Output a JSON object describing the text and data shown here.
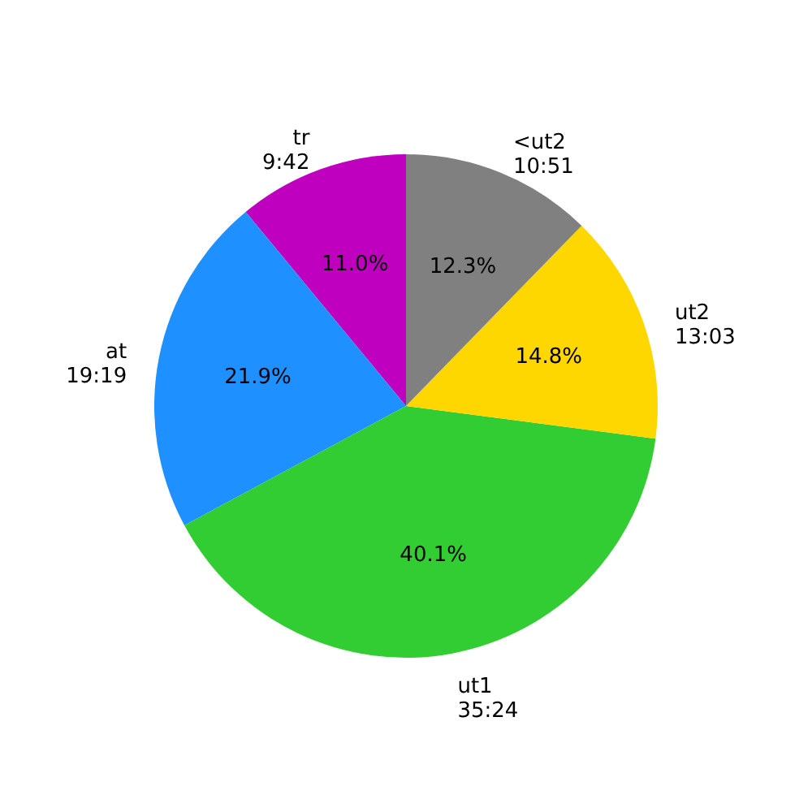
{
  "chart_data": {
    "type": "pie",
    "categories": [
      "tr\n9:42",
      "at\n19:19",
      "ut1\n35:24",
      "ut2\n13:03",
      "<ut2\n10:51"
    ],
    "values": [
      11.0,
      21.9,
      40.1,
      14.8,
      12.3
    ],
    "value_labels": [
      "11.0%",
      "21.9%",
      "40.1%",
      "14.8%",
      "12.3%"
    ],
    "colors": [
      "#bf00bf",
      "#1e90ff",
      "#32cd32",
      "#ffd700",
      "#808080"
    ]
  }
}
